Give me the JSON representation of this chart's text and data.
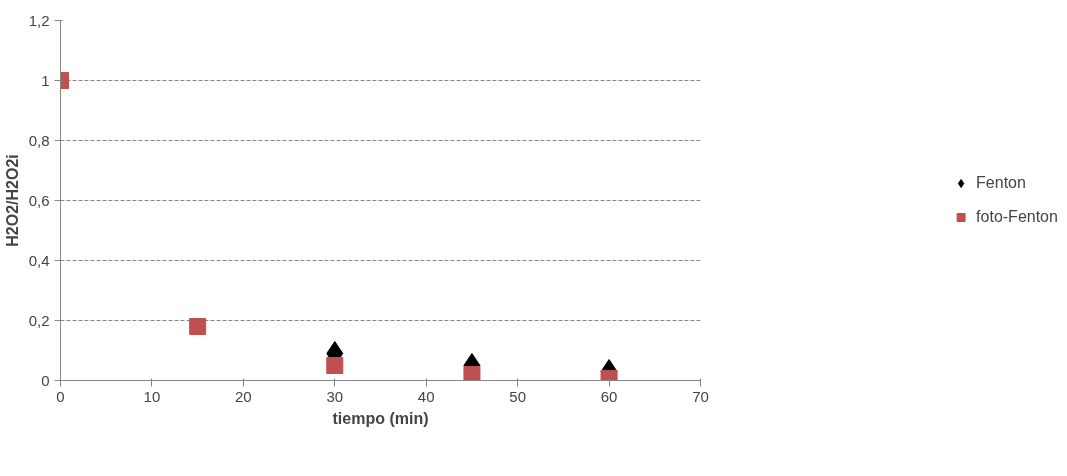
{
  "chart_data": {
    "type": "scatter",
    "xlabel": "tiempo (min)",
    "ylabel": "H2O2/H2O2i",
    "x": [
      0,
      15,
      30,
      45,
      60
    ],
    "series": [
      {
        "name": "Fenton",
        "color": "#000000",
        "marker": "diamond",
        "values": [
          null,
          null,
          0.09,
          0.05,
          0.03
        ]
      },
      {
        "name": "foto-Fenton",
        "color": "#c0504d",
        "marker": "square",
        "values": [
          1,
          0.18,
          0.05,
          0.02,
          0.007
        ]
      }
    ],
    "xlim": [
      0,
      70
    ],
    "xticks": [
      0,
      10,
      20,
      30,
      40,
      50,
      60,
      70
    ],
    "ylim": [
      0,
      1.2
    ],
    "yticks": [
      {
        "value": 0,
        "label": "0"
      },
      {
        "value": 0.2,
        "label": "0,2"
      },
      {
        "value": 0.4,
        "label": "0,4"
      },
      {
        "value": 0.6,
        "label": "0,6"
      },
      {
        "value": 0.8,
        "label": "0,8"
      },
      {
        "value": 1,
        "label": "1"
      },
      {
        "value": 1.2,
        "label": "1,2"
      }
    ],
    "grid": "y",
    "legend": "right"
  }
}
